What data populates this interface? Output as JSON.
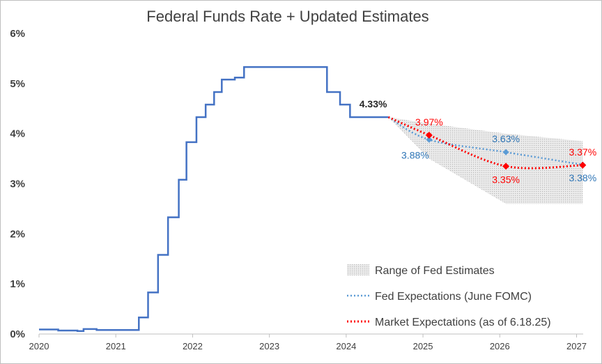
{
  "chart_data": {
    "type": "line",
    "title": "Federal Funds Rate + Updated Estimates",
    "xlabel": "",
    "ylabel": "",
    "xlim": [
      2020,
      2027.05
    ],
    "ylim": [
      0,
      6
    ],
    "y_ticks": [
      0,
      1,
      2,
      3,
      4,
      5,
      6
    ],
    "y_tick_labels": [
      "0%",
      "1%",
      "2%",
      "3%",
      "4%",
      "5%",
      "6%"
    ],
    "x_ticks": [
      2020,
      2021,
      2022,
      2023,
      2024,
      2025,
      2026,
      2027
    ],
    "x_tick_labels": [
      "2020",
      "2021",
      "2022",
      "2023",
      "2024",
      "2025",
      "2026",
      "2027"
    ],
    "grid": false,
    "legend_placement": "bottom-right",
    "colors": {
      "fed_funds": "#4472c4",
      "fed_expect": "#5b9bd5",
      "market": "#ff0000",
      "range_fill": "#d9d9d9",
      "axis": "#bfbfbf",
      "text": "#404040"
    },
    "series": [
      {
        "name": "Federal Funds Rate",
        "style": "step",
        "x": [
          2020.0,
          2020.25,
          2020.5,
          2020.58,
          2020.75,
          2021.0,
          2021.25,
          2021.3,
          2021.42,
          2021.55,
          2021.68,
          2021.82,
          2021.92,
          2022.05,
          2022.17,
          2022.28,
          2022.38,
          2022.55,
          2022.67,
          2023.0,
          2023.3,
          2023.55,
          2023.75,
          2023.92,
          2024.05,
          2024.55
        ],
        "values": [
          0.09,
          0.07,
          0.06,
          0.1,
          0.08,
          0.08,
          0.08,
          0.33,
          0.83,
          1.58,
          2.33,
          3.08,
          3.83,
          4.33,
          4.58,
          4.83,
          5.08,
          5.12,
          5.33,
          5.33,
          5.33,
          5.33,
          4.83,
          4.58,
          4.33,
          4.33
        ]
      },
      {
        "name": "Fed Expectations (June FOMC)",
        "style": "dotted",
        "x": [
          2024.55,
          2025.08,
          2026.08,
          2027.08
        ],
        "values": [
          4.33,
          3.88,
          3.63,
          3.38
        ]
      },
      {
        "name": "Market Expectations (as of 6.18.25)",
        "style": "dotted",
        "x": [
          2024.55,
          2025.08,
          2026.08,
          2027.08
        ],
        "values": [
          4.33,
          3.97,
          3.35,
          3.37
        ]
      }
    ],
    "range_band": {
      "name": "Range of Fed Estimates",
      "x": [
        2024.55,
        2025.08,
        2026.08,
        2027.08
      ],
      "low": [
        4.33,
        3.5,
        2.6,
        2.6
      ],
      "high": [
        4.33,
        4.2,
        4.0,
        3.85
      ]
    },
    "annotations": [
      {
        "text": "4.33%",
        "x": 2024.55,
        "y": 4.33,
        "series": "current",
        "position": "above-left"
      },
      {
        "text": "3.97%",
        "x": 2025.08,
        "y": 3.97,
        "series": "market",
        "position": "above"
      },
      {
        "text": "3.88%",
        "x": 2025.08,
        "y": 3.88,
        "series": "fed",
        "position": "below-left"
      },
      {
        "text": "3.63%",
        "x": 2026.08,
        "y": 3.63,
        "series": "fed",
        "position": "above"
      },
      {
        "text": "3.35%",
        "x": 2026.08,
        "y": 3.35,
        "series": "market",
        "position": "below"
      },
      {
        "text": "3.37%",
        "x": 2027.08,
        "y": 3.37,
        "series": "market",
        "position": "above"
      },
      {
        "text": "3.38%",
        "x": 2027.08,
        "y": 3.38,
        "series": "fed",
        "position": "below"
      }
    ]
  }
}
